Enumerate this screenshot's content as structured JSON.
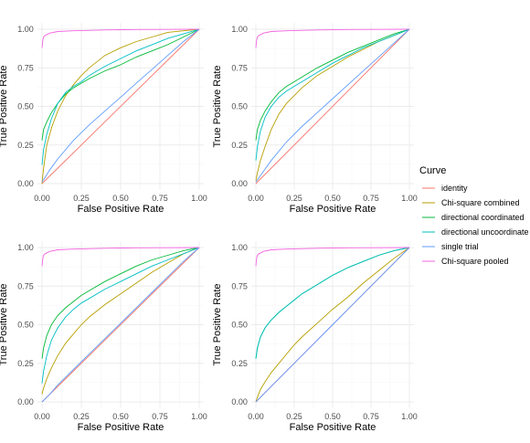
{
  "chart_data": [
    {
      "type": "line",
      "xlabel": "False Positive Rate",
      "ylabel": "True Positive Rate",
      "xlim": [
        0,
        1
      ],
      "ylim": [
        0,
        1
      ],
      "x_ticks": [
        "0.00",
        "0.25",
        "0.50",
        "0.75",
        "1.00"
      ],
      "y_ticks": [
        "0.00",
        "0.25",
        "0.50",
        "0.75",
        "1.00"
      ],
      "grid": true,
      "series": [
        {
          "name": "identity",
          "x": [
            0,
            1
          ],
          "y": [
            0,
            1
          ]
        },
        {
          "name": "Chi-square combined",
          "x": [
            0,
            0.01,
            0.03,
            0.06,
            0.1,
            0.15,
            0.2,
            0.25,
            0.3,
            0.4,
            0.5,
            0.6,
            0.7,
            0.8,
            0.9,
            1.0
          ],
          "y": [
            0,
            0.1,
            0.25,
            0.36,
            0.47,
            0.57,
            0.64,
            0.7,
            0.75,
            0.83,
            0.88,
            0.92,
            0.95,
            0.98,
            0.99,
            1.0
          ]
        },
        {
          "name": "directional coordinated",
          "x": [
            0,
            0.01,
            0.03,
            0.06,
            0.1,
            0.15,
            0.2,
            0.25,
            0.3,
            0.4,
            0.5,
            0.6,
            0.7,
            0.8,
            0.9,
            1.0
          ],
          "y": [
            0.28,
            0.35,
            0.4,
            0.46,
            0.52,
            0.58,
            0.62,
            0.65,
            0.68,
            0.73,
            0.77,
            0.82,
            0.86,
            0.9,
            0.95,
            1.0
          ]
        },
        {
          "name": "directional uncoordinated",
          "x": [
            0,
            0.01,
            0.03,
            0.06,
            0.1,
            0.15,
            0.2,
            0.25,
            0.3,
            0.4,
            0.5,
            0.6,
            0.7,
            0.8,
            0.9,
            1.0
          ],
          "y": [
            0.12,
            0.22,
            0.32,
            0.42,
            0.52,
            0.59,
            0.63,
            0.66,
            0.7,
            0.76,
            0.81,
            0.86,
            0.9,
            0.94,
            0.97,
            1.0
          ]
        },
        {
          "name": "single trial",
          "x": [
            0,
            0.05,
            0.1,
            0.2,
            0.3,
            0.4,
            0.5,
            0.6,
            0.7,
            0.8,
            0.9,
            1.0
          ],
          "y": [
            0.01,
            0.09,
            0.16,
            0.28,
            0.38,
            0.47,
            0.56,
            0.65,
            0.74,
            0.83,
            0.92,
            1.0
          ]
        },
        {
          "name": "Chi-square pooled",
          "x": [
            0,
            0.005,
            0.01,
            0.02,
            0.05,
            0.1,
            0.2,
            0.4,
            0.6,
            0.8,
            1.0
          ],
          "y": [
            0.88,
            0.93,
            0.95,
            0.96,
            0.975,
            0.985,
            0.99,
            0.995,
            0.998,
            0.999,
            1.0
          ]
        }
      ]
    },
    {
      "type": "line",
      "xlabel": "False Positive Rate",
      "ylabel": "True Positive Rate",
      "xlim": [
        0,
        1
      ],
      "ylim": [
        0,
        1
      ],
      "x_ticks": [
        "0.00",
        "0.25",
        "0.50",
        "0.75",
        "1.00"
      ],
      "y_ticks": [
        "0.00",
        "0.25",
        "0.50",
        "0.75",
        "1.00"
      ],
      "grid": true,
      "series": [
        {
          "name": "identity",
          "x": [
            0,
            1
          ],
          "y": [
            0,
            1
          ]
        },
        {
          "name": "Chi-square combined",
          "x": [
            0,
            0.01,
            0.03,
            0.06,
            0.1,
            0.15,
            0.2,
            0.25,
            0.3,
            0.4,
            0.5,
            0.6,
            0.7,
            0.8,
            0.9,
            1.0
          ],
          "y": [
            0.02,
            0.07,
            0.15,
            0.24,
            0.35,
            0.45,
            0.52,
            0.57,
            0.62,
            0.7,
            0.76,
            0.82,
            0.87,
            0.92,
            0.96,
            1.0
          ]
        },
        {
          "name": "directional coordinated",
          "x": [
            0,
            0.01,
            0.03,
            0.06,
            0.1,
            0.15,
            0.2,
            0.25,
            0.3,
            0.4,
            0.5,
            0.6,
            0.7,
            0.8,
            0.9,
            1.0
          ],
          "y": [
            0.28,
            0.35,
            0.41,
            0.47,
            0.53,
            0.59,
            0.63,
            0.66,
            0.69,
            0.75,
            0.8,
            0.85,
            0.89,
            0.93,
            0.97,
            1.0
          ]
        },
        {
          "name": "directional uncoordinated",
          "x": [
            0,
            0.01,
            0.03,
            0.06,
            0.1,
            0.15,
            0.2,
            0.25,
            0.3,
            0.4,
            0.5,
            0.6,
            0.7,
            0.8,
            0.9,
            1.0
          ],
          "y": [
            0.15,
            0.24,
            0.34,
            0.43,
            0.5,
            0.56,
            0.6,
            0.63,
            0.66,
            0.72,
            0.78,
            0.83,
            0.88,
            0.92,
            0.96,
            1.0
          ]
        },
        {
          "name": "single trial",
          "x": [
            0,
            0.05,
            0.1,
            0.2,
            0.3,
            0.4,
            0.5,
            0.6,
            0.7,
            0.8,
            0.9,
            1.0
          ],
          "y": [
            0.01,
            0.08,
            0.15,
            0.27,
            0.37,
            0.46,
            0.55,
            0.64,
            0.73,
            0.82,
            0.91,
            1.0
          ]
        },
        {
          "name": "Chi-square pooled",
          "x": [
            0,
            0.005,
            0.01,
            0.02,
            0.05,
            0.1,
            0.2,
            0.4,
            0.6,
            0.8,
            1.0
          ],
          "y": [
            0.88,
            0.93,
            0.95,
            0.96,
            0.975,
            0.985,
            0.99,
            0.995,
            0.998,
            0.999,
            1.0
          ]
        }
      ]
    },
    {
      "type": "line",
      "xlabel": "False Positive Rate",
      "ylabel": "True Positive Rate",
      "xlim": [
        0,
        1
      ],
      "ylim": [
        0,
        1
      ],
      "x_ticks": [
        "0.00",
        "0.25",
        "0.50",
        "0.75",
        "1.00"
      ],
      "y_ticks": [
        "0.00",
        "0.25",
        "0.50",
        "0.75",
        "1.00"
      ],
      "grid": true,
      "series": [
        {
          "name": "identity",
          "x": [
            0,
            1
          ],
          "y": [
            0,
            1
          ]
        },
        {
          "name": "Chi-square combined",
          "x": [
            0,
            0.01,
            0.03,
            0.06,
            0.1,
            0.15,
            0.2,
            0.25,
            0.3,
            0.4,
            0.5,
            0.6,
            0.7,
            0.8,
            0.9,
            1.0
          ],
          "y": [
            0.05,
            0.09,
            0.15,
            0.22,
            0.3,
            0.38,
            0.44,
            0.5,
            0.55,
            0.63,
            0.7,
            0.77,
            0.84,
            0.9,
            0.96,
            1.0
          ]
        },
        {
          "name": "directional coordinated",
          "x": [
            0,
            0.01,
            0.03,
            0.06,
            0.1,
            0.15,
            0.2,
            0.25,
            0.3,
            0.4,
            0.5,
            0.6,
            0.7,
            0.8,
            0.9,
            1.0
          ],
          "y": [
            0.28,
            0.35,
            0.43,
            0.5,
            0.56,
            0.61,
            0.65,
            0.69,
            0.72,
            0.78,
            0.83,
            0.88,
            0.92,
            0.95,
            0.98,
            1.0
          ]
        },
        {
          "name": "directional uncoordinated",
          "x": [
            0,
            0.01,
            0.03,
            0.06,
            0.1,
            0.15,
            0.2,
            0.25,
            0.3,
            0.4,
            0.5,
            0.6,
            0.7,
            0.8,
            0.9,
            1.0
          ],
          "y": [
            0.12,
            0.2,
            0.3,
            0.4,
            0.48,
            0.55,
            0.6,
            0.64,
            0.67,
            0.73,
            0.78,
            0.83,
            0.88,
            0.92,
            0.96,
            1.0
          ]
        },
        {
          "name": "single trial",
          "x": [
            0,
            0.05,
            0.1,
            0.2,
            0.3,
            0.4,
            0.5,
            0.6,
            0.7,
            0.8,
            0.9,
            1.0
          ],
          "y": [
            0.0,
            0.05,
            0.11,
            0.21,
            0.31,
            0.41,
            0.51,
            0.61,
            0.71,
            0.81,
            0.91,
            1.0
          ]
        },
        {
          "name": "Chi-square pooled",
          "x": [
            0,
            0.005,
            0.01,
            0.02,
            0.05,
            0.1,
            0.2,
            0.4,
            0.6,
            0.8,
            1.0
          ],
          "y": [
            0.88,
            0.93,
            0.95,
            0.96,
            0.975,
            0.985,
            0.99,
            0.995,
            0.998,
            0.999,
            1.0
          ]
        }
      ]
    },
    {
      "type": "line",
      "xlabel": "False Positive Rate",
      "ylabel": "True Positive Rate",
      "xlim": [
        0,
        1
      ],
      "ylim": [
        0,
        1
      ],
      "x_ticks": [
        "0.00",
        "0.25",
        "0.50",
        "0.75",
        "1.00"
      ],
      "y_ticks": [
        "0.00",
        "0.25",
        "0.50",
        "0.75",
        "1.00"
      ],
      "grid": true,
      "series": [
        {
          "name": "identity",
          "x": [
            0,
            1
          ],
          "y": [
            0,
            1
          ]
        },
        {
          "name": "Chi-square combined",
          "x": [
            0,
            0.01,
            0.03,
            0.06,
            0.1,
            0.15,
            0.2,
            0.25,
            0.3,
            0.4,
            0.5,
            0.6,
            0.7,
            0.8,
            0.9,
            1.0
          ],
          "y": [
            0.0,
            0.03,
            0.08,
            0.13,
            0.19,
            0.25,
            0.31,
            0.37,
            0.42,
            0.51,
            0.6,
            0.68,
            0.77,
            0.85,
            0.93,
            1.0
          ]
        },
        {
          "name": "directional coordinated",
          "x": [
            0,
            0.01,
            0.03,
            0.06,
            0.1,
            0.15,
            0.2,
            0.25,
            0.3,
            0.4,
            0.5,
            0.6,
            0.7,
            0.8,
            0.9,
            1.0
          ],
          "y": [
            0.28,
            0.35,
            0.42,
            0.48,
            0.53,
            0.58,
            0.62,
            0.66,
            0.7,
            0.76,
            0.82,
            0.87,
            0.91,
            0.95,
            0.98,
            1.0
          ]
        },
        {
          "name": "directional uncoordinated",
          "x": [
            0,
            0.01,
            0.03,
            0.06,
            0.1,
            0.15,
            0.2,
            0.25,
            0.3,
            0.4,
            0.5,
            0.6,
            0.7,
            0.8,
            0.9,
            1.0
          ],
          "y": [
            0.28,
            0.35,
            0.42,
            0.48,
            0.53,
            0.58,
            0.62,
            0.66,
            0.7,
            0.76,
            0.82,
            0.87,
            0.91,
            0.95,
            0.98,
            1.0
          ]
        },
        {
          "name": "single trial",
          "x": [
            0,
            0.05,
            0.1,
            0.2,
            0.3,
            0.4,
            0.5,
            0.6,
            0.7,
            0.8,
            0.9,
            1.0
          ],
          "y": [
            0.0,
            0.05,
            0.1,
            0.2,
            0.3,
            0.4,
            0.5,
            0.6,
            0.7,
            0.8,
            0.9,
            1.0
          ]
        },
        {
          "name": "Chi-square pooled",
          "x": [
            0,
            0.005,
            0.01,
            0.02,
            0.05,
            0.1,
            0.2,
            0.4,
            0.6,
            0.8,
            1.0
          ],
          "y": [
            0.88,
            0.93,
            0.95,
            0.96,
            0.975,
            0.985,
            0.99,
            0.995,
            0.998,
            0.999,
            1.0
          ]
        }
      ]
    }
  ],
  "legend": {
    "title": "Curve",
    "placement": "right",
    "items": [
      {
        "label": "identity",
        "color": "#F8766D"
      },
      {
        "label": "Chi-square combined",
        "color": "#B79F00"
      },
      {
        "label": "directional coordinated",
        "color": "#00BA38"
      },
      {
        "label": "directional uncoordinate",
        "color": "#00BFC4"
      },
      {
        "label": "single trial",
        "color": "#619CFF"
      },
      {
        "label": "Chi-square pooled",
        "color": "#F564E3"
      }
    ]
  }
}
